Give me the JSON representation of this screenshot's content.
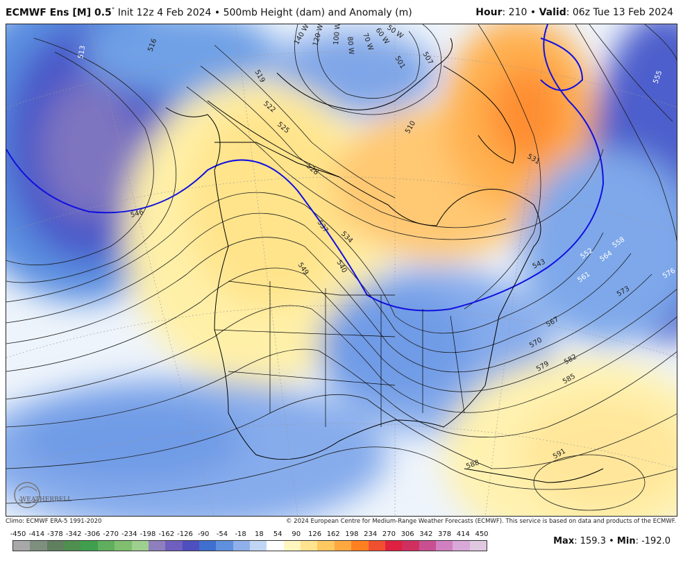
{
  "header": {
    "model": "ECMWF Ens [M] 0.5",
    "degree_sym": "°",
    "init_text": "Init 12z 4 Feb 2024",
    "separator": "•",
    "field_text": "500mb Height (dam) and Anomaly (m)",
    "hour_label": "Hour",
    "hour_value": ": 210",
    "valid_label": "Valid",
    "valid_value": ": 06z Tue 13 Feb 2024"
  },
  "map": {
    "contour_labels": [
      "513",
      "516",
      "519",
      "522",
      "525",
      "528",
      "531",
      "534",
      "537",
      "540",
      "543",
      "546",
      "549",
      "552",
      "555",
      "558",
      "561",
      "564",
      "567",
      "570",
      "573",
      "576",
      "579",
      "582",
      "585",
      "588",
      "501",
      "507",
      "510",
      "591"
    ],
    "jet_labels": [
      "140 W",
      "120 W",
      "100 W",
      "80 W",
      "70 W",
      "60 W",
      "50 W"
    ],
    "logo_text": "WEATHERBELL"
  },
  "footer": {
    "climo": "Climo: ECMWF ERA-5 1991-2020",
    "copyright": "© 2024 European Centre for Medium-Range Weather Forecasts (ECMWF). This service is based on data and products of the ECMWF.",
    "max_label": "Max",
    "max_value": ": 159.3",
    "min_sep": "•",
    "min_label": "Min",
    "min_value": ": -192.0"
  },
  "scale": {
    "ticks": [
      "-450",
      "-414",
      "-378",
      "-342",
      "-306",
      "-270",
      "-234",
      "-198",
      "-162",
      "-126",
      "-90",
      "-54",
      "-18",
      "18",
      "54",
      "90",
      "126",
      "162",
      "198",
      "234",
      "270",
      "306",
      "342",
      "378",
      "414",
      "450"
    ],
    "colors": [
      "#a8a8a8",
      "#7f8f7f",
      "#5f7f5f",
      "#4f8f4f",
      "#3f9f4f",
      "#5faf5f",
      "#7fbf6f",
      "#9fcf8f",
      "#8f7fbf",
      "#6f5fbf",
      "#4f4fbf",
      "#3f6fcf",
      "#5f8fdf",
      "#8fb0ea",
      "#c0d6f4",
      "#ffffff",
      "#fff6c0",
      "#ffe38f",
      "#ffc860",
      "#ffa840",
      "#ff8020",
      "#f05030",
      "#e02040",
      "#d03060",
      "#c85090",
      "#d080c0",
      "#d8a8d8",
      "#e0c8e0"
    ]
  }
}
